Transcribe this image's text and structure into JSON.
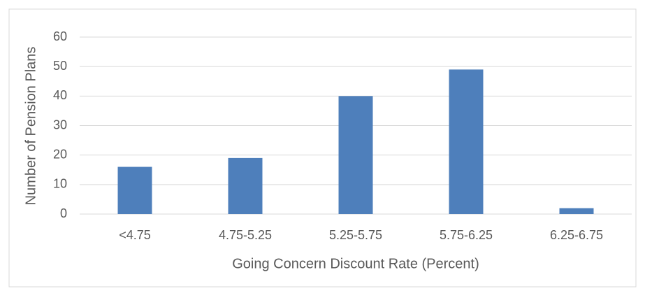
{
  "chart_data": {
    "type": "bar",
    "categories": [
      "<4.75",
      "4.75-5.25",
      "5.25-5.75",
      "5.75-6.25",
      "6.25-6.75"
    ],
    "values": [
      16,
      19,
      40,
      49,
      2
    ],
    "color": "#4e7fbb",
    "xlabel": "Going Concern Discount Rate (Percent)",
    "ylabel": "Number of Pension Plans",
    "ylim": [
      0,
      60
    ],
    "yticks": [
      0,
      10,
      20,
      30,
      40,
      50,
      60
    ],
    "grid": true
  }
}
